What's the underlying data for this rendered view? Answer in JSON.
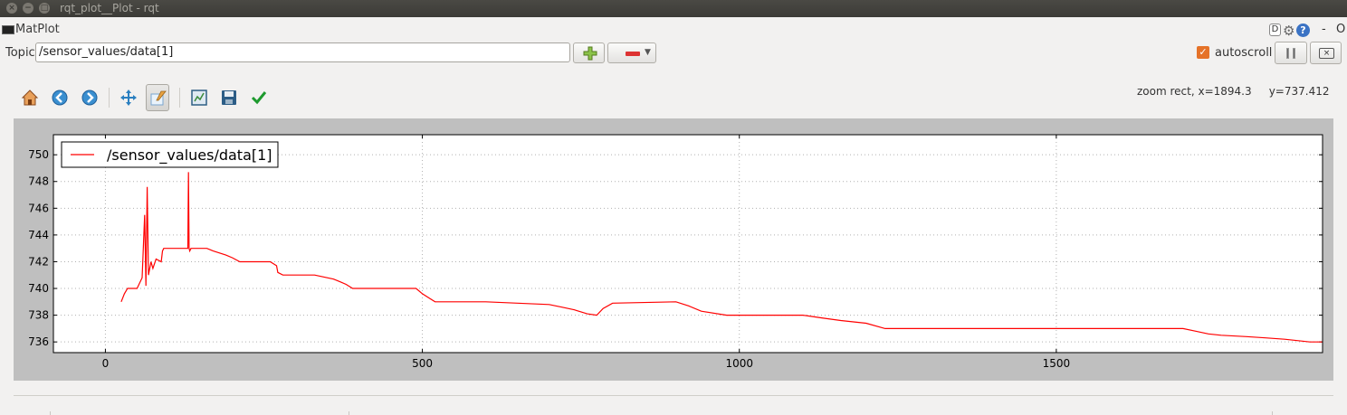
{
  "window": {
    "title": "rqt_plot__Plot - rqt"
  },
  "plugin": {
    "title": "MatPlot",
    "d_label": "D",
    "help_label": "?",
    "dash_label": "-",
    "close_label": "O"
  },
  "topic": {
    "label": "Topic",
    "value": "/sensor_values/data[1]"
  },
  "controls": {
    "autoscroll_label": "autoscroll",
    "autoscroll_checked": true
  },
  "status": {
    "zoom_text": "zoom rect, x=1894.3     y=737.412"
  },
  "icons": {
    "home": "home-icon",
    "back": "back-arrow-icon",
    "forward": "forward-arrow-icon",
    "pan": "pan-icon",
    "zoom": "zoom-rect-icon",
    "subplots": "configure-subplots-icon",
    "save": "save-icon",
    "edit": "edit-axes-icon"
  },
  "colors": {
    "series": "#ff0000",
    "accent": "#e57228"
  },
  "chart_data": {
    "type": "line",
    "title": "",
    "xlabel": "",
    "ylabel": "",
    "xlim": [
      -82,
      1920
    ],
    "ylim": [
      735.2,
      751.5
    ],
    "xticks": [
      0,
      500,
      1000,
      1500
    ],
    "yticks": [
      736,
      738,
      740,
      742,
      744,
      746,
      748,
      750
    ],
    "grid": true,
    "legend_placement": "top-left",
    "series": [
      {
        "name": "/sensor_values/data[1]",
        "color": "#ff0000",
        "x": [
          25,
          30,
          35,
          50,
          58,
          62,
          64,
          66,
          68,
          70,
          72,
          75,
          80,
          88,
          90,
          92,
          130,
          131,
          132,
          133,
          135,
          140,
          160,
          170,
          190,
          200,
          212,
          250,
          260,
          270,
          272,
          280,
          290,
          330,
          340,
          360,
          370,
          380,
          390,
          400,
          450,
          490,
          500,
          510,
          520,
          560,
          570,
          600,
          650,
          700,
          720,
          740,
          760,
          775,
          785,
          800,
          900,
          920,
          940,
          980,
          1000,
          1100,
          1130,
          1160,
          1200,
          1230,
          1300,
          1500,
          1600,
          1700,
          1720,
          1740,
          1760,
          1800,
          1830,
          1860,
          1900,
          1920
        ],
        "y": [
          739.0,
          739.6,
          740.0,
          740.0,
          740.8,
          745.5,
          740.2,
          747.6,
          741.0,
          741.5,
          742.0,
          741.5,
          742.2,
          742.0,
          742.8,
          743.0,
          743.0,
          748.7,
          743.0,
          742.8,
          743.0,
          743.0,
          743.0,
          742.8,
          742.5,
          742.3,
          742.0,
          742.0,
          742.0,
          741.7,
          741.2,
          741.0,
          741.0,
          741.0,
          740.9,
          740.7,
          740.5,
          740.3,
          740.0,
          740.0,
          740.0,
          740.0,
          739.6,
          739.3,
          739.0,
          739.0,
          739.0,
          739.0,
          738.9,
          738.8,
          738.6,
          738.4,
          738.1,
          738.0,
          738.5,
          738.9,
          739.0,
          738.7,
          738.3,
          738.0,
          738.0,
          738.0,
          737.8,
          737.6,
          737.4,
          737.0,
          737.0,
          737.0,
          737.0,
          737.0,
          736.8,
          736.6,
          736.5,
          736.4,
          736.3,
          736.2,
          736.0,
          736.0
        ]
      }
    ]
  }
}
